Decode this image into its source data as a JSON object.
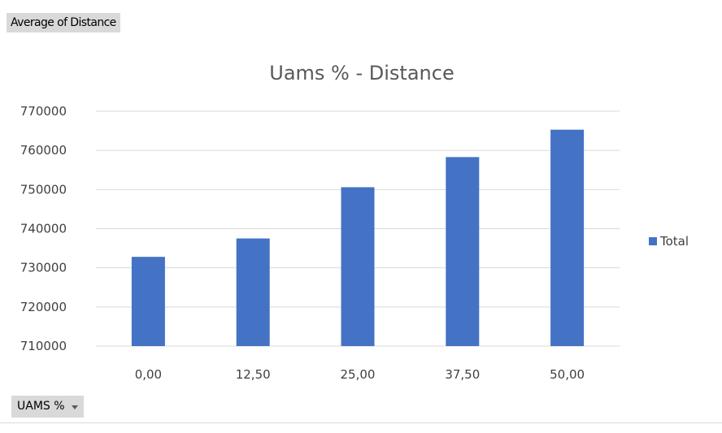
{
  "value_field_button": {
    "label": "Average of Distance"
  },
  "axis_field_button": {
    "label": "UAMS %",
    "icon": "dropdown-arrow-icon"
  },
  "chart_data": {
    "type": "bar",
    "title": "Uams % - Distance",
    "xlabel": "",
    "ylabel": "",
    "categories": [
      "0,00",
      "12,50",
      "25,00",
      "37,50",
      "50,00"
    ],
    "series": [
      {
        "name": "Total",
        "color": "#4472c4",
        "values": [
          732800,
          737500,
          750600,
          758300,
          765300
        ]
      }
    ],
    "ylim": [
      710000,
      770000
    ],
    "yticks": [
      "710000",
      "720000",
      "730000",
      "740000",
      "750000",
      "760000",
      "770000"
    ],
    "ytick_values": [
      710000,
      720000,
      730000,
      740000,
      750000,
      760000,
      770000
    ],
    "grid": true,
    "legend": "right",
    "colors": {
      "bar": "#4472c4",
      "gridline": "#d9d9d9",
      "title": "#595959",
      "labels": "#404040"
    }
  }
}
